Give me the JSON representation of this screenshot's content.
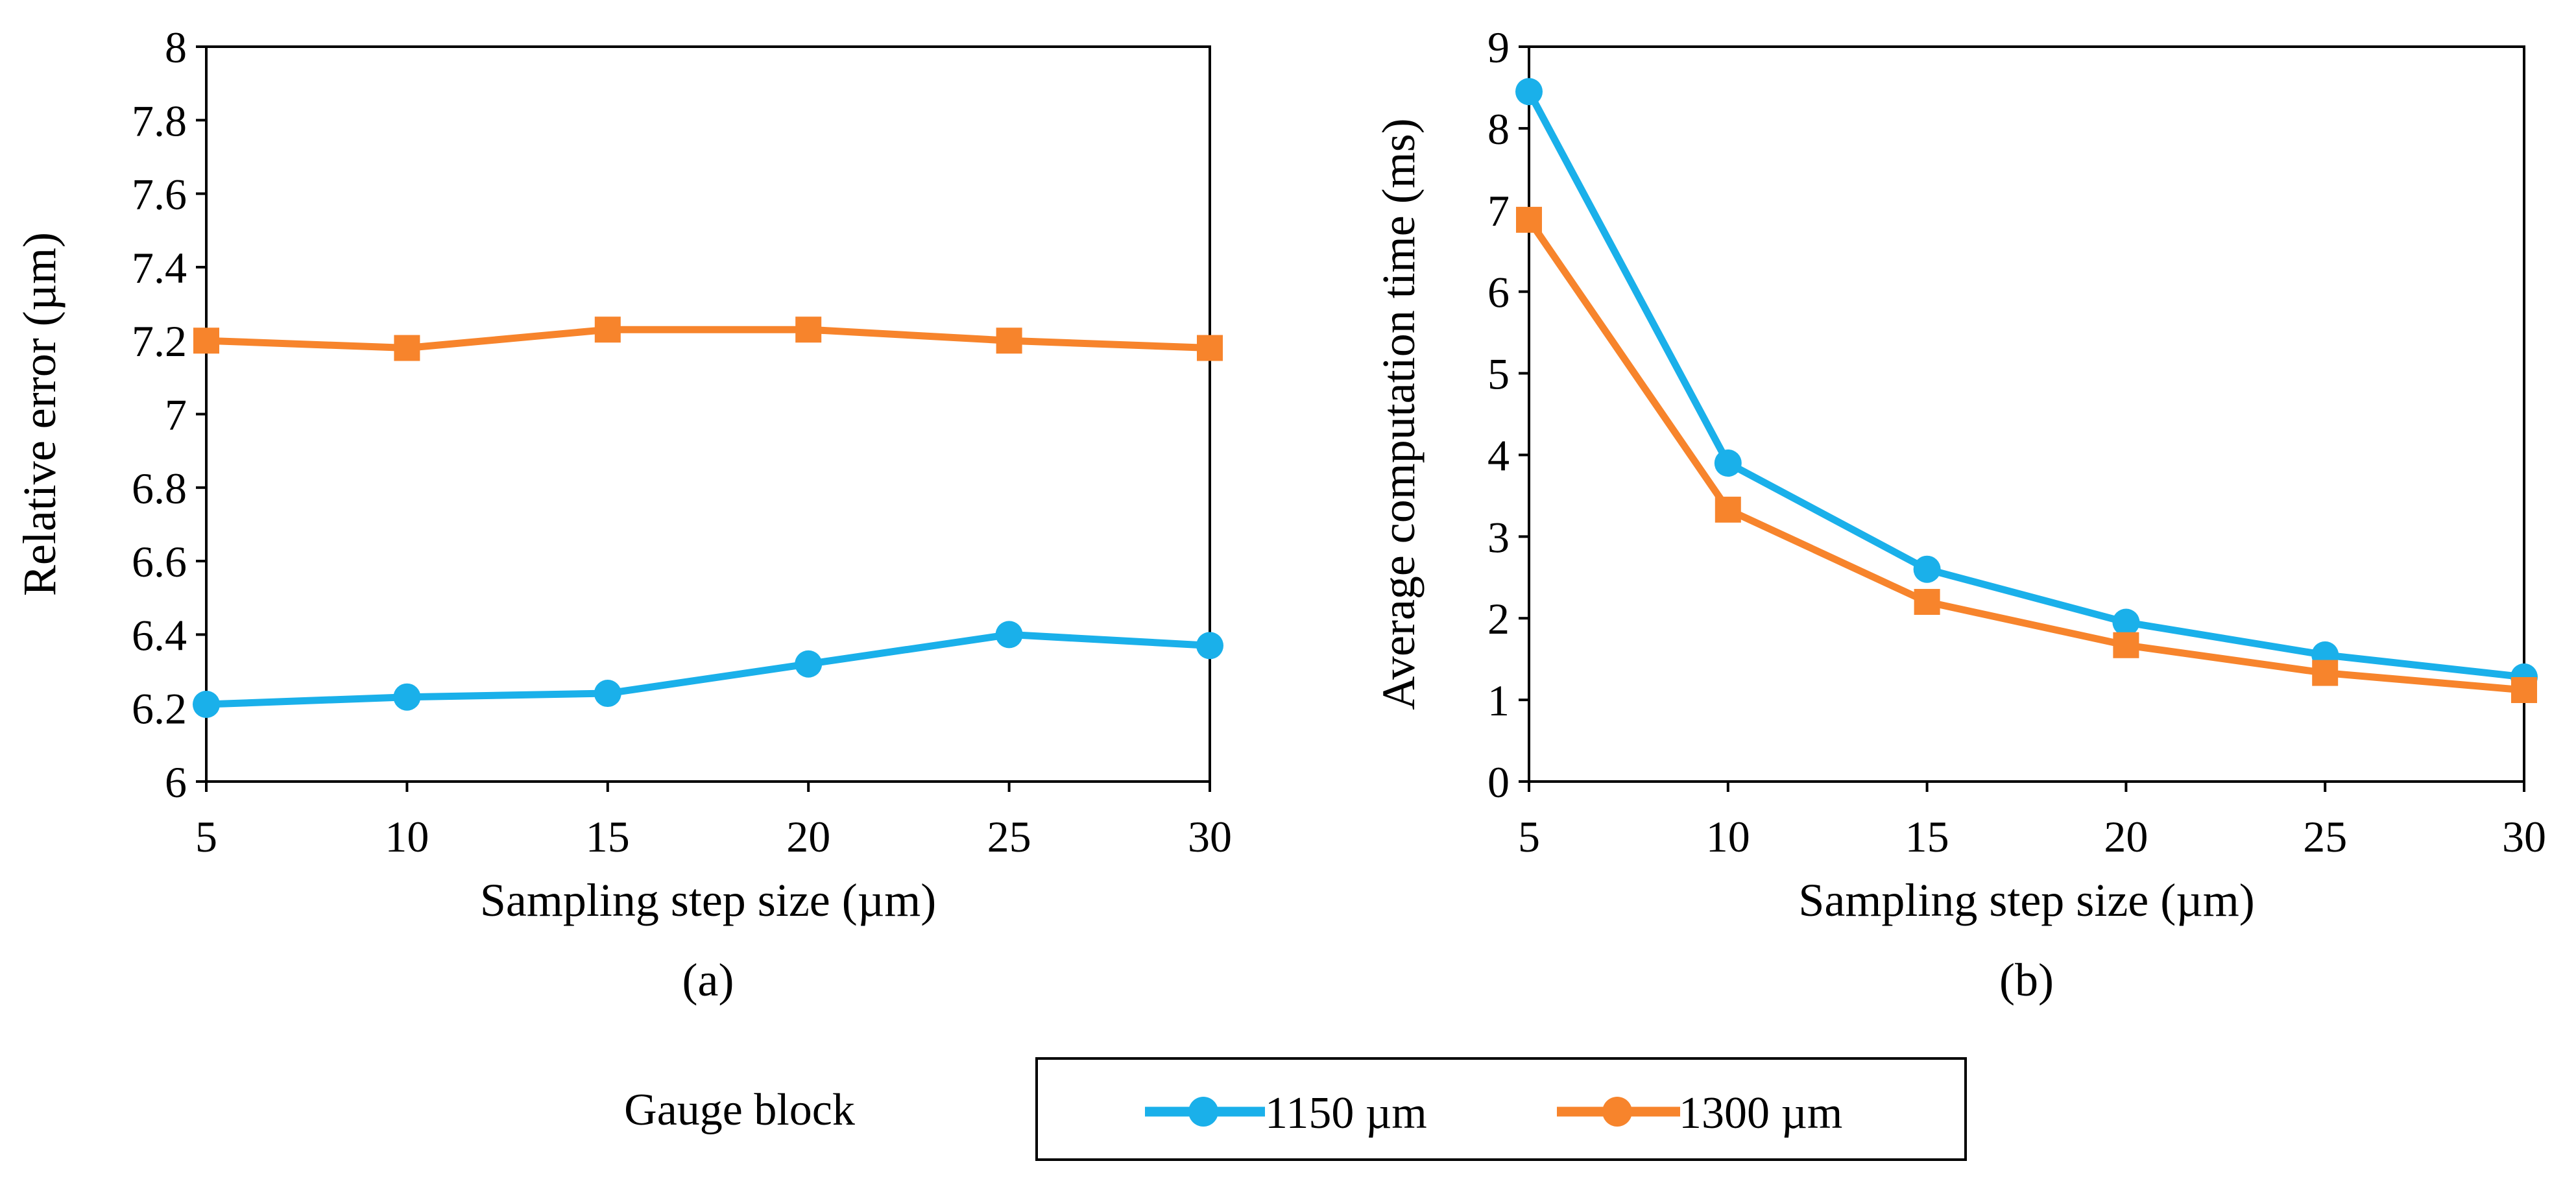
{
  "colors": {
    "series_1150": "#1AB0EA",
    "series_1300": "#F7842C",
    "axis": "#000000"
  },
  "legend": {
    "group_label": "Gauge block",
    "entries": [
      "1150 µm",
      "1300 µm"
    ]
  },
  "chart_data": [
    {
      "panel_label": "(a)",
      "type": "line",
      "title": "",
      "xlabel": "Sampling step size (µm)",
      "ylabel": "Relative error (µm)",
      "x": [
        5,
        10,
        15,
        20,
        25,
        30
      ],
      "x_tick_labels": [
        "5",
        "10",
        "15",
        "20",
        "25",
        "30"
      ],
      "xlim": [
        5,
        30
      ],
      "ylim": [
        6,
        8
      ],
      "y_tick_labels": [
        "6",
        "6.2",
        "6.4",
        "6.6",
        "6.8",
        "7",
        "7.2",
        "7.4",
        "7.6",
        "7.8",
        "8"
      ],
      "grid": false,
      "series": [
        {
          "name": "1150 µm",
          "marker": "circle",
          "values": [
            6.21,
            6.23,
            6.24,
            6.32,
            6.4,
            6.37
          ]
        },
        {
          "name": "1300 µm",
          "marker": "square",
          "values": [
            7.2,
            7.18,
            7.23,
            7.23,
            7.2,
            7.18
          ]
        }
      ]
    },
    {
      "panel_label": "(b)",
      "type": "line",
      "title": "",
      "xlabel": "Sampling step size (µm)",
      "ylabel": "Average computation time (ms)",
      "x": [
        5,
        10,
        15,
        20,
        25,
        30
      ],
      "x_tick_labels": [
        "5",
        "10",
        "15",
        "20",
        "25",
        "30"
      ],
      "xlim": [
        5,
        30
      ],
      "ylim": [
        0,
        9
      ],
      "y_tick_labels": [
        "0",
        "1",
        "2",
        "3",
        "4",
        "5",
        "6",
        "7",
        "8",
        "9"
      ],
      "grid": false,
      "series": [
        {
          "name": "1150 µm",
          "marker": "circle",
          "values": [
            8.45,
            3.9,
            2.6,
            1.95,
            1.55,
            1.28
          ]
        },
        {
          "name": "1300 µm",
          "marker": "square",
          "values": [
            6.88,
            3.33,
            2.2,
            1.67,
            1.33,
            1.12
          ]
        }
      ]
    }
  ]
}
